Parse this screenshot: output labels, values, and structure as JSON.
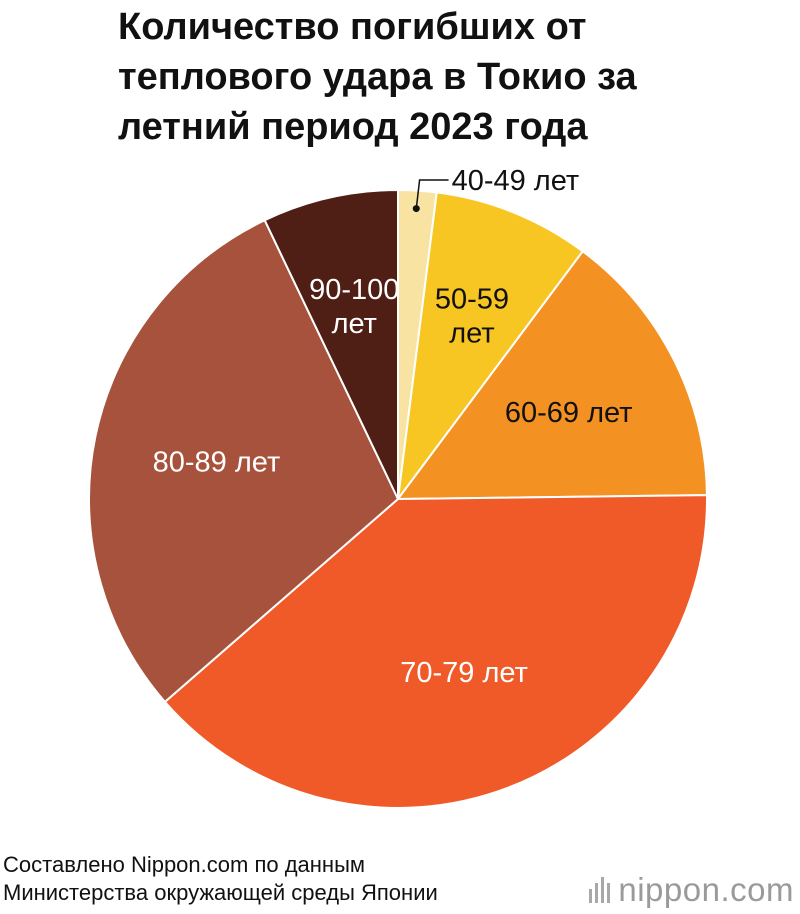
{
  "title_lines": [
    "Количество погибших от",
    "теплового удара в Токио за",
    "летний период 2023 года"
  ],
  "chart_data": {
    "type": "pie",
    "title": "Количество погибших от теплового удара в Токио за летний период 2023 года",
    "slices": [
      {
        "label": "40-49 лет",
        "value": 2.0,
        "color": "#f9e3a2",
        "label_lines": [
          "40-49 лет"
        ],
        "text_color": "#111111",
        "outside": true
      },
      {
        "label": "50-59 лет",
        "value": 8.2,
        "color": "#f7c623",
        "label_lines": [
          "50-59",
          "лет"
        ],
        "text_color": "#111111"
      },
      {
        "label": "60-69 лет",
        "value": 14.6,
        "color": "#f39122",
        "label_lines": [
          "60-69 лет"
        ],
        "text_color": "#111111"
      },
      {
        "label": "70-79 лет",
        "value": 38.8,
        "color": "#f05a28",
        "label_lines": [
          "70-79 лет"
        ],
        "text_color": "#ffffff"
      },
      {
        "label": "80-89 лет",
        "value": 29.3,
        "color": "#a6523c",
        "label_lines": [
          "80-89 лет"
        ],
        "text_color": "#ffffff"
      },
      {
        "label": "90-100 лет",
        "value": 7.1,
        "color": "#4f1e14",
        "label_lines": [
          "90-100",
          "лет"
        ],
        "text_color": "#ffffff"
      }
    ]
  },
  "source_lines": [
    "Составлено Nippon.com по данным",
    "Министерства окружающей среды Японии"
  ],
  "brand": {
    "name": "nippon",
    "suffix": ".com"
  }
}
